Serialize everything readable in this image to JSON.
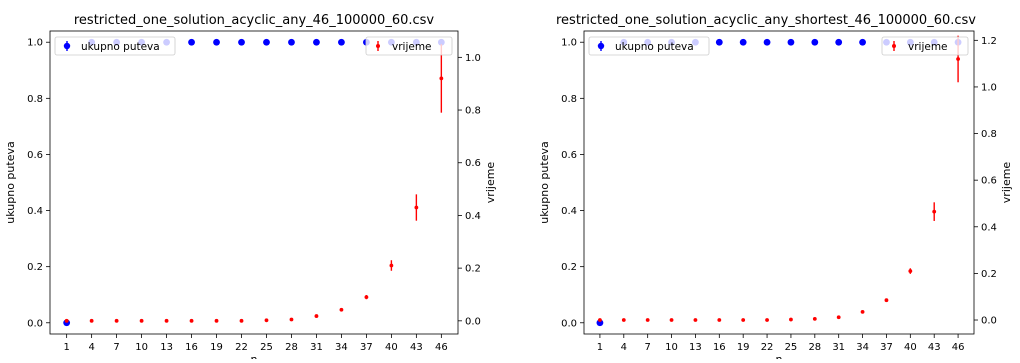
{
  "charts": [
    {
      "title": "restricted_one_solution_acyclic_any_46_100000_60.csv",
      "chart_data": {
        "type": "scatter",
        "title": "restricted_one_solution_acyclic_any_46_100000_60.csv",
        "xlabel": "n",
        "x_ticks": [
          1,
          4,
          7,
          10,
          13,
          16,
          19,
          22,
          25,
          28,
          31,
          34,
          37,
          40,
          43,
          46
        ],
        "left_axis": {
          "label": "ukupno puteva",
          "ylim": [
            -0.04,
            1.04
          ],
          "ticks": [
            0.0,
            0.2,
            0.4,
            0.6,
            0.8,
            1.0
          ],
          "tick_labels": [
            "0.0",
            "0.2",
            "0.4",
            "0.6",
            "0.8",
            "1.0"
          ]
        },
        "right_axis": {
          "label": "vrijeme",
          "ylim": [
            -0.05,
            1.1
          ],
          "ticks": [
            0.0,
            0.2,
            0.4,
            0.6,
            0.8,
            1.0
          ],
          "tick_labels": [
            "0.0",
            "0.2",
            "0.4",
            "0.6",
            "0.8",
            "1.0"
          ]
        },
        "series": [
          {
            "name": "ukupno puteva",
            "axis": "left",
            "color": "#0000ff",
            "x": [
              1,
              4,
              7,
              10,
              13,
              16,
              19,
              22,
              25,
              28,
              31,
              34,
              37,
              40,
              43,
              46
            ],
            "y": [
              0.0,
              1.0,
              1.0,
              1.0,
              1.0,
              1.0,
              1.0,
              1.0,
              1.0,
              1.0,
              1.0,
              1.0,
              1.0,
              1.0,
              1.0,
              1.0
            ],
            "err": [
              0,
              0,
              0,
              0,
              0,
              0,
              0,
              0,
              0,
              0,
              0,
              0,
              0,
              0,
              0,
              0
            ]
          },
          {
            "name": "vrijeme",
            "axis": "right",
            "color": "#ff0000",
            "x": [
              1,
              4,
              7,
              10,
              13,
              16,
              19,
              22,
              25,
              28,
              31,
              34,
              37,
              40,
              43,
              46
            ],
            "y": [
              0.0,
              0.0,
              0.0,
              0.0,
              0.0,
              0.0,
              0.0,
              0.0,
              0.002,
              0.005,
              0.018,
              0.042,
              0.09,
              0.21,
              0.43,
              0.92
            ],
            "err": [
              0,
              0,
              0,
              0,
              0,
              0,
              0,
              0,
              0,
              0,
              0.003,
              0.004,
              0.008,
              0.02,
              0.05,
              0.13
            ]
          }
        ],
        "legend": [
          "top-left",
          "top-right"
        ],
        "grid": false
      }
    },
    {
      "title": "restricted_one_solution_acyclic_any_shortest_46_100000_60.csv",
      "chart_data": {
        "type": "scatter",
        "title": "restricted_one_solution_acyclic_any_shortest_46_100000_60.csv",
        "xlabel": "n",
        "x_ticks": [
          1,
          4,
          7,
          10,
          13,
          16,
          19,
          22,
          25,
          28,
          31,
          34,
          37,
          40,
          43,
          46
        ],
        "left_axis": {
          "label": "ukupno puteva",
          "ylim": [
            -0.04,
            1.04
          ],
          "ticks": [
            0.0,
            0.2,
            0.4,
            0.6,
            0.8,
            1.0
          ],
          "tick_labels": [
            "0.0",
            "0.2",
            "0.4",
            "0.6",
            "0.8",
            "1.0"
          ]
        },
        "right_axis": {
          "label": "vrijeme",
          "ylim": [
            -0.06,
            1.24
          ],
          "ticks": [
            0.0,
            0.2,
            0.4,
            0.6,
            0.8,
            1.0,
            1.2
          ],
          "tick_labels": [
            "0.0",
            "0.2",
            "0.4",
            "0.6",
            "0.8",
            "1.0",
            "1.2"
          ]
        },
        "series": [
          {
            "name": "ukupno puteva",
            "axis": "left",
            "color": "#0000ff",
            "x": [
              1,
              4,
              7,
              10,
              13,
              16,
              19,
              22,
              25,
              28,
              31,
              34,
              37,
              40,
              43,
              46
            ],
            "y": [
              0.0,
              1.0,
              1.0,
              1.0,
              1.0,
              1.0,
              1.0,
              1.0,
              1.0,
              1.0,
              1.0,
              1.0,
              1.0,
              1.0,
              1.0,
              1.0
            ],
            "err": [
              0,
              0,
              0,
              0,
              0,
              0,
              0,
              0,
              0,
              0,
              0,
              0,
              0,
              0,
              0,
              0
            ]
          },
          {
            "name": "vrijeme",
            "axis": "right",
            "color": "#ff0000",
            "x": [
              1,
              4,
              7,
              10,
              13,
              16,
              19,
              22,
              25,
              28,
              31,
              34,
              37,
              40,
              43,
              46
            ],
            "y": [
              0.0,
              0.0,
              0.0,
              0.0,
              0.0,
              0.0,
              0.0,
              0.0,
              0.002,
              0.005,
              0.012,
              0.035,
              0.085,
              0.21,
              0.465,
              1.12
            ],
            "err": [
              0,
              0,
              0,
              0,
              0,
              0,
              0,
              0,
              0,
              0,
              0.002,
              0.003,
              0.005,
              0.012,
              0.04,
              0.1
            ]
          }
        ],
        "legend": [
          "top-left",
          "top-right"
        ],
        "grid": false
      }
    }
  ]
}
